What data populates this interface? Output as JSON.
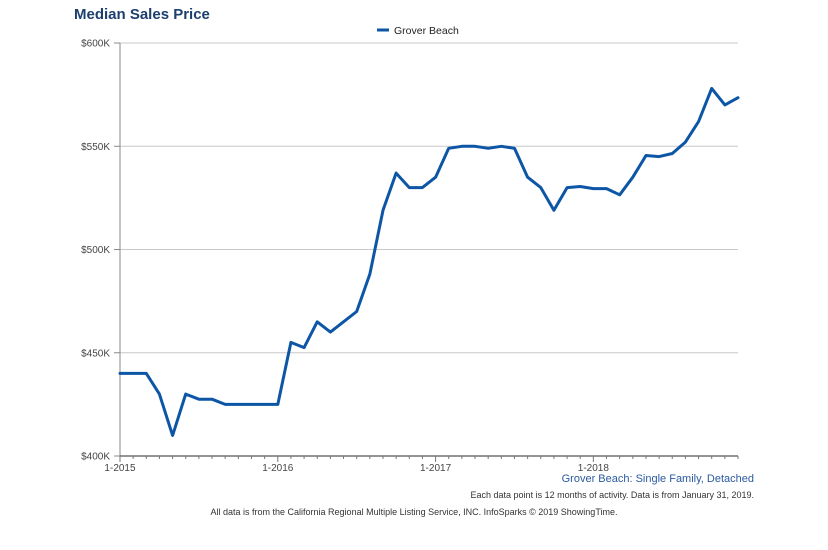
{
  "chart_data": {
    "type": "line",
    "title": "Median Sales Price",
    "legend": {
      "position": "top-center",
      "entries": [
        "Grover Beach"
      ]
    },
    "series": [
      {
        "name": "Grover Beach",
        "color": "#0d56a6",
        "points": [
          {
            "x": "2015-01",
            "y": 440000
          },
          {
            "x": "2015-02",
            "y": 440000
          },
          {
            "x": "2015-03",
            "y": 440000
          },
          {
            "x": "2015-04",
            "y": 430000
          },
          {
            "x": "2015-05",
            "y": 410000
          },
          {
            "x": "2015-06",
            "y": 430000
          },
          {
            "x": "2015-07",
            "y": 427500
          },
          {
            "x": "2015-08",
            "y": 427500
          },
          {
            "x": "2015-09",
            "y": 425000
          },
          {
            "x": "2015-10",
            "y": 425000
          },
          {
            "x": "2015-11",
            "y": 425000
          },
          {
            "x": "2015-12",
            "y": 425000
          },
          {
            "x": "2016-01",
            "y": 425000
          },
          {
            "x": "2016-02",
            "y": 455000
          },
          {
            "x": "2016-03",
            "y": 452500
          },
          {
            "x": "2016-04",
            "y": 465000
          },
          {
            "x": "2016-05",
            "y": 460000
          },
          {
            "x": "2016-06",
            "y": 465000
          },
          {
            "x": "2016-07",
            "y": 470000
          },
          {
            "x": "2016-08",
            "y": 488000
          },
          {
            "x": "2016-09",
            "y": 519000
          },
          {
            "x": "2016-10",
            "y": 537000
          },
          {
            "x": "2016-11",
            "y": 530000
          },
          {
            "x": "2016-12",
            "y": 530000
          },
          {
            "x": "2017-01",
            "y": 535000
          },
          {
            "x": "2017-02",
            "y": 549000
          },
          {
            "x": "2017-03",
            "y": 550000
          },
          {
            "x": "2017-04",
            "y": 550000
          },
          {
            "x": "2017-05",
            "y": 549000
          },
          {
            "x": "2017-06",
            "y": 550000
          },
          {
            "x": "2017-07",
            "y": 549000
          },
          {
            "x": "2017-08",
            "y": 535000
          },
          {
            "x": "2017-09",
            "y": 530000
          },
          {
            "x": "2017-10",
            "y": 519000
          },
          {
            "x": "2017-11",
            "y": 530000
          },
          {
            "x": "2017-12",
            "y": 530500
          },
          {
            "x": "2018-01",
            "y": 529500
          },
          {
            "x": "2018-02",
            "y": 529500
          },
          {
            "x": "2018-03",
            "y": 526500
          },
          {
            "x": "2018-04",
            "y": 535000
          },
          {
            "x": "2018-05",
            "y": 545500
          },
          {
            "x": "2018-06",
            "y": 545000
          },
          {
            "x": "2018-07",
            "y": 546500
          },
          {
            "x": "2018-08",
            "y": 552000
          },
          {
            "x": "2018-09",
            "y": 562000
          },
          {
            "x": "2018-10",
            "y": 578000
          },
          {
            "x": "2018-11",
            "y": 570000
          },
          {
            "x": "2018-12",
            "y": 573500
          }
        ]
      }
    ],
    "xaxis": {
      "range": [
        "2015-01",
        "2018-12"
      ],
      "ticks": [
        {
          "x": "2015-01",
          "label": "1-2015"
        },
        {
          "x": "2016-01",
          "label": "1-2016"
        },
        {
          "x": "2017-01",
          "label": "1-2017"
        },
        {
          "x": "2018-01",
          "label": "1-2018"
        }
      ]
    },
    "yaxis": {
      "range": [
        400000,
        600000
      ],
      "ticks": [
        {
          "y": 400000,
          "label": "$400K"
        },
        {
          "y": 450000,
          "label": "$450K"
        },
        {
          "y": 500000,
          "label": "$500K"
        },
        {
          "y": 550000,
          "label": "$550K"
        },
        {
          "y": 600000,
          "label": "$600K"
        }
      ]
    },
    "grid": {
      "horizontal": true,
      "vertical": false
    },
    "notes": {
      "subtitle": "Grover Beach: Single Family, Detached",
      "data_note": "Each data point is 12 months of activity. Data is from January 31, 2019.",
      "footer": "All data is from the California Regional Multiple Listing Service, INC. InfoSparks © 2019 ShowingTime."
    }
  }
}
